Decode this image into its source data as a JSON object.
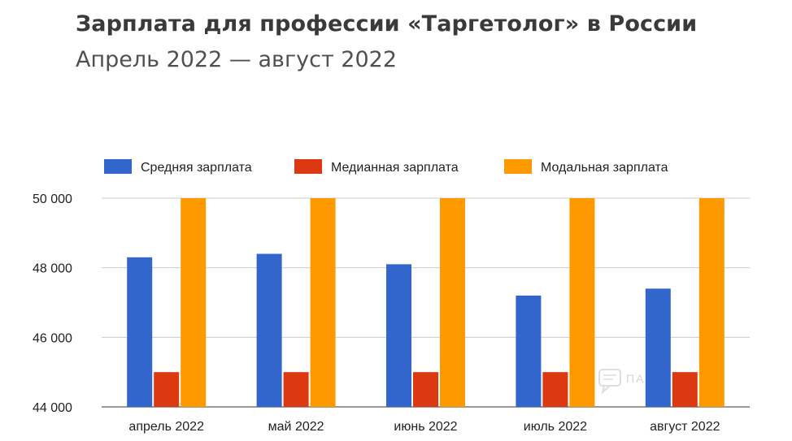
{
  "header": {
    "title": "Зарплата для профессии «Таргетолог» в России",
    "subtitle": "Апрель 2022 — август 2022"
  },
  "watermark": {
    "text": "ПАРТНЕРКИН",
    "icon": "chat-bubble-icon"
  },
  "chart_data": {
    "type": "bar",
    "title": "Зарплата для профессии «Таргетолог» в России",
    "subtitle": "Апрель 2022 — август 2022",
    "xlabel": "",
    "ylabel": "",
    "categories": [
      "апрель 2022",
      "май 2022",
      "июнь 2022",
      "июль 2022",
      "август 2022"
    ],
    "series": [
      {
        "name": "Средняя зарплата",
        "color": "#3366cc",
        "values": [
          48300,
          48400,
          48100,
          47200,
          47400
        ]
      },
      {
        "name": "Медианная зарплата",
        "color": "#dc3912",
        "values": [
          45000,
          45000,
          45000,
          45000,
          45000
        ]
      },
      {
        "name": "Модальная зарплата",
        "color": "#ff9900",
        "values": [
          50000,
          50000,
          50000,
          50000,
          50000
        ]
      }
    ],
    "ylim": [
      44000,
      50000
    ],
    "yticks": [
      44000,
      46000,
      48000,
      50000
    ],
    "ytick_labels": [
      "44 000",
      "46 000",
      "48 000",
      "50 000"
    ],
    "grid": true,
    "legend_position": "top-left"
  }
}
